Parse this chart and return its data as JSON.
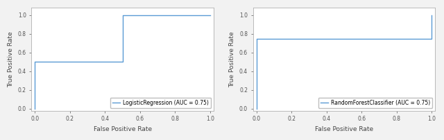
{
  "plot1": {
    "fpr": [
      0.0,
      0.0,
      0.5,
      0.5,
      1.0
    ],
    "tpr": [
      0.0,
      0.5,
      0.5,
      1.0,
      1.0
    ],
    "label": "LogisticRegression (AUC = 0.75)",
    "color": "#5b9bd5",
    "xlabel": "False Positive Rate",
    "ylabel": "True Positive Rate",
    "xlim": [
      -0.02,
      1.02
    ],
    "ylim": [
      -0.02,
      1.08
    ],
    "xticks": [
      0.0,
      0.2,
      0.4,
      0.6,
      0.8,
      1.0
    ],
    "yticks": [
      0.0,
      0.2,
      0.4,
      0.6,
      0.8,
      1.0
    ]
  },
  "plot2": {
    "fpr": [
      0.0,
      0.0,
      1.0,
      1.0
    ],
    "tpr": [
      0.0,
      0.75,
      0.75,
      1.0
    ],
    "label": "RandomForestClassifier (AUC = 0.75)",
    "color": "#5b9bd5",
    "xlabel": "False Positive Rate",
    "ylabel": "True Positive Rate",
    "xlim": [
      -0.02,
      1.02
    ],
    "ylim": [
      -0.02,
      1.08
    ],
    "xticks": [
      0.0,
      0.2,
      0.4,
      0.6,
      0.8,
      1.0
    ],
    "yticks": [
      0.0,
      0.2,
      0.4,
      0.6,
      0.8,
      1.0
    ]
  },
  "legend_fontsize": 5.5,
  "axis_label_fontsize": 6.5,
  "tick_fontsize": 5.5,
  "line_width": 1.0,
  "background_color": "#f2f2f2",
  "axes_facecolor": "#ffffff",
  "spine_color": "#b0b0b0",
  "tick_color": "#555555",
  "label_color": "#444444"
}
